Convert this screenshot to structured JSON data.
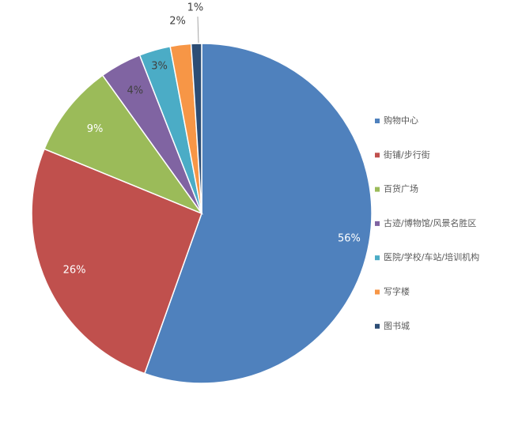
{
  "chart_data": {
    "type": "pie",
    "categories": [
      "购物中心",
      "街铺/步行街",
      "百货广场",
      "古迹/博物馆/风景名胜区",
      "医院/学校/车站/培训机构",
      "写字楼",
      "图书城"
    ],
    "values": [
      56,
      26,
      9,
      4,
      3,
      2,
      1
    ],
    "value_labels": [
      "56%",
      "26%",
      "9%",
      "4%",
      "3%",
      "2%",
      "1%"
    ],
    "colors": [
      "#4f81bd",
      "#c0504d",
      "#9bbb59",
      "#8064a2",
      "#4bacc6",
      "#f79646",
      "#2c4d75"
    ],
    "legend": "right"
  }
}
